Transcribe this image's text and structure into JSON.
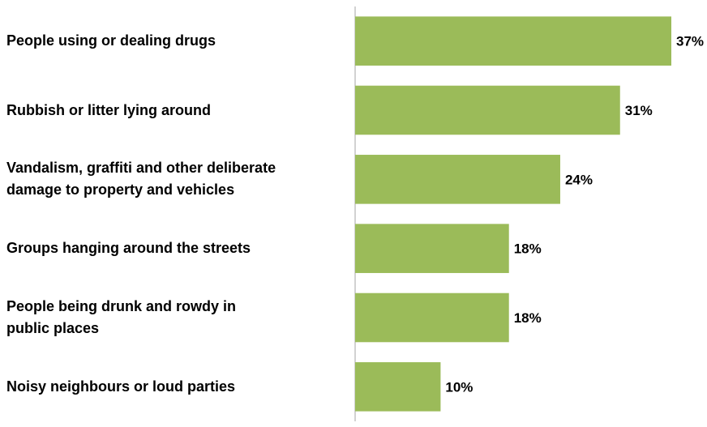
{
  "chart_data": {
    "type": "bar",
    "orientation": "horizontal",
    "categories": [
      "People using or dealing drugs",
      "Rubbish or litter lying around",
      "Vandalism, graffiti and other deliberate\ndamage to property and vehicles",
      "Groups hanging around the streets",
      "People being drunk and rowdy in\npublic places",
      "Noisy neighbours or loud parties"
    ],
    "values": [
      37,
      31,
      24,
      18,
      18,
      10
    ],
    "value_labels": [
      "37%",
      "31%",
      "24%",
      "18%",
      "18%",
      "10%"
    ],
    "xlim": [
      0,
      40
    ],
    "grid": false,
    "legend": "none",
    "bar_color": "#9bbb59"
  }
}
